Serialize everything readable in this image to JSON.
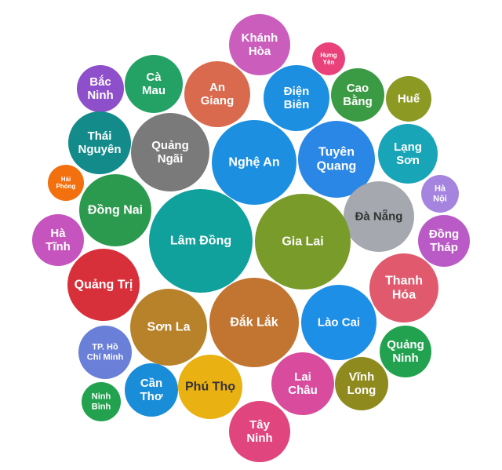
{
  "chart_data": {
    "type": "bubble",
    "title": "",
    "bubbles": [
      {
        "label": [
          "Khánh",
          "Hòa"
        ],
        "color": "#CB5DBD"
      },
      {
        "label": [
          "Hưng",
          "Yên"
        ],
        "color": "#E9427A"
      },
      {
        "label": [
          "Cà",
          "Mau"
        ],
        "color": "#24A265"
      },
      {
        "label": [
          "An",
          "Giang"
        ],
        "color": "#DA6A4E"
      },
      {
        "label": [
          "Điện",
          "Biên"
        ],
        "color": "#1D8FE1"
      },
      {
        "label": [
          "Cao",
          "Bằng"
        ],
        "color": "#3B9A44"
      },
      {
        "label": [
          "Bắc",
          "Ninh"
        ],
        "color": "#8E4FCB"
      },
      {
        "label": [
          "Huế"
        ],
        "color": "#8C9A24"
      },
      {
        "label": [
          "Thái",
          "Nguyên"
        ],
        "color": "#148B8B"
      },
      {
        "label": [
          "Quảng",
          "Ngãi"
        ],
        "color": "#7A7A7A"
      },
      {
        "label": [
          "Nghệ An"
        ],
        "color": "#1D8FE1"
      },
      {
        "label": [
          "Tuyên",
          "Quang"
        ],
        "color": "#2A87E6"
      },
      {
        "label": [
          "Lạng",
          "Sơn"
        ],
        "color": "#19A5B8"
      },
      {
        "label": [
          "Hải",
          "Phòng"
        ],
        "color": "#F2700E"
      },
      {
        "label": [
          "Hà",
          "Nội"
        ],
        "color": "#A584E0"
      },
      {
        "label": [
          "Đồng Nai"
        ],
        "color": "#2C9A4E"
      },
      {
        "label": [
          "Đà Nẵng"
        ],
        "color": "#A5A8AE",
        "dark": true
      },
      {
        "label": [
          "Lâm Đồng"
        ],
        "color": "#11A19C"
      },
      {
        "label": [
          "Gia Lai"
        ],
        "color": "#789B2A"
      },
      {
        "label": [
          "Hà",
          "Tĩnh"
        ],
        "color": "#C654BE"
      },
      {
        "label": [
          "Đồng",
          "Tháp"
        ],
        "color": "#BA5AC7"
      },
      {
        "label": [
          "Quảng Trị"
        ],
        "color": "#D7303A"
      },
      {
        "label": [
          "Thanh",
          "Hóa"
        ],
        "color": "#E0596D"
      },
      {
        "label": [
          "Sơn La"
        ],
        "color": "#B8822A"
      },
      {
        "label": [
          "Đắk Lắk"
        ],
        "color": "#C27431"
      },
      {
        "label": [
          "Lào Cai"
        ],
        "color": "#1E8FE6"
      },
      {
        "label": [
          "Quảng",
          "Ninh"
        ],
        "color": "#22A24F"
      },
      {
        "label": [
          "TP. Hồ",
          "Chí Minh"
        ],
        "color": "#6A7FD8"
      },
      {
        "label": [
          "Cần",
          "Thơ"
        ],
        "color": "#1A8DD9"
      },
      {
        "label": [
          "Phú Thọ"
        ],
        "color": "#EAB112",
        "dark": true
      },
      {
        "label": [
          "Lai",
          "Châu"
        ],
        "color": "#D94C9D"
      },
      {
        "label": [
          "Vĩnh",
          "Long"
        ],
        "color": "#8F8A1E"
      },
      {
        "label": [
          "Ninh",
          "Bình"
        ],
        "color": "#22A24F"
      },
      {
        "label": [
          "Tây",
          "Ninh"
        ],
        "color": "#E0457D"
      }
    ]
  }
}
